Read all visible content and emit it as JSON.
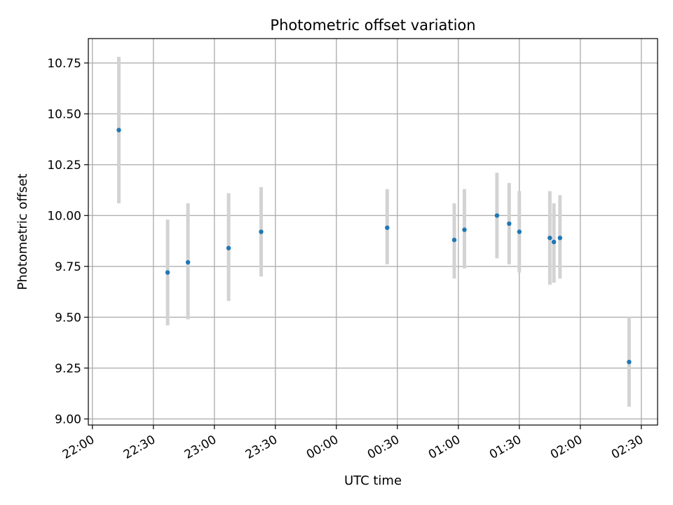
{
  "chart_data": {
    "type": "scatter",
    "title": "Photometric offset variation",
    "xlabel": "UTC time",
    "ylabel": "Photometric offset",
    "grid": true,
    "x_ticks": [
      "22:00",
      "22:30",
      "23:00",
      "23:30",
      "00:00",
      "00:30",
      "01:00",
      "01:30",
      "02:00",
      "02:30"
    ],
    "y_ticks": [
      "9.00",
      "9.25",
      "9.50",
      "9.75",
      "10.00",
      "10.25",
      "10.50",
      "10.75"
    ],
    "xlim": [
      "21:58",
      "02:38"
    ],
    "ylim": [
      8.97,
      10.87
    ],
    "marker_color": "#1f77b4",
    "errorbar_color": "#d3d3d3",
    "points": [
      {
        "x": "22:13",
        "y": 10.42,
        "ylow": 10.06,
        "yhigh": 10.78
      },
      {
        "x": "22:37",
        "y": 9.72,
        "ylow": 9.46,
        "yhigh": 9.98
      },
      {
        "x": "22:47",
        "y": 9.77,
        "ylow": 9.49,
        "yhigh": 10.06
      },
      {
        "x": "23:07",
        "y": 9.84,
        "ylow": 9.58,
        "yhigh": 10.11
      },
      {
        "x": "23:23",
        "y": 9.92,
        "ylow": 9.7,
        "yhigh": 10.14
      },
      {
        "x": "00:25",
        "y": 9.94,
        "ylow": 9.76,
        "yhigh": 10.13
      },
      {
        "x": "00:58",
        "y": 9.88,
        "ylow": 9.69,
        "yhigh": 10.06
      },
      {
        "x": "01:03",
        "y": 9.93,
        "ylow": 9.74,
        "yhigh": 10.13
      },
      {
        "x": "01:19",
        "y": 10.0,
        "ylow": 9.79,
        "yhigh": 10.21
      },
      {
        "x": "01:25",
        "y": 9.96,
        "ylow": 9.76,
        "yhigh": 10.16
      },
      {
        "x": "01:30",
        "y": 9.92,
        "ylow": 9.72,
        "yhigh": 10.12
      },
      {
        "x": "01:45",
        "y": 9.89,
        "ylow": 9.66,
        "yhigh": 10.12
      },
      {
        "x": "01:47",
        "y": 9.87,
        "ylow": 9.67,
        "yhigh": 10.06
      },
      {
        "x": "01:50",
        "y": 9.89,
        "ylow": 9.69,
        "yhigh": 10.1
      },
      {
        "x": "02:24",
        "y": 9.28,
        "ylow": 9.06,
        "yhigh": 9.5
      }
    ]
  }
}
